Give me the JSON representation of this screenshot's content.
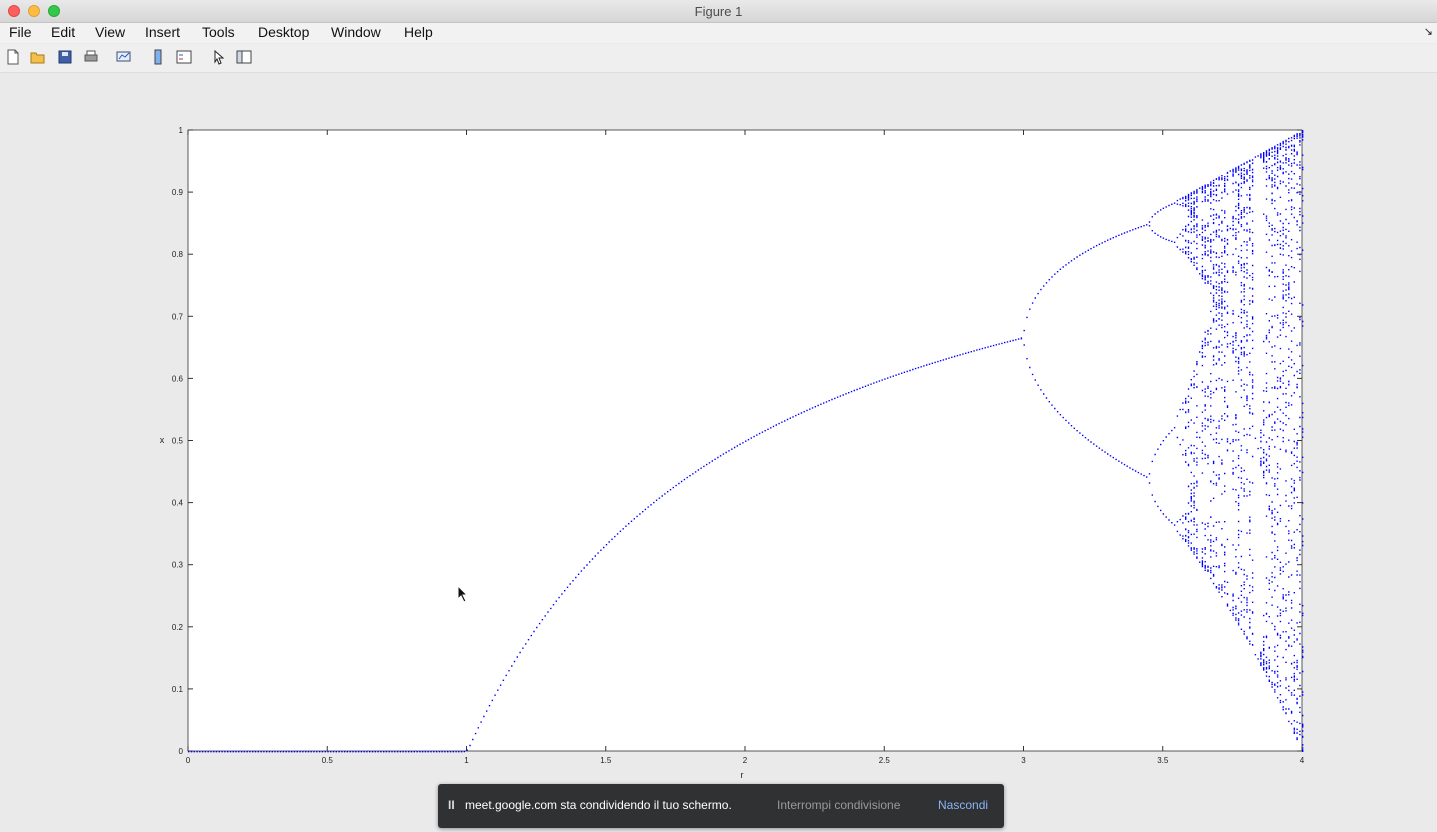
{
  "window": {
    "title": "Figure 1"
  },
  "menu": [
    "File",
    "Edit",
    "View",
    "Insert",
    "Tools",
    "Desktop",
    "Window",
    "Help"
  ],
  "toolbar": {
    "icons": [
      "new-figure-icon",
      "open-file-icon",
      "save-icon",
      "print-icon",
      "link-plot-icon",
      "insert-colorbar-icon",
      "insert-legend-icon",
      "edit-plot-icon",
      "show-plot-tools-icon"
    ]
  },
  "share_bar": {
    "pause": "II",
    "message": "meet.google.com sta condividendo il tuo schermo.",
    "stop_label": "Interrompi condivisione",
    "hide_label": "Nascondi"
  },
  "chart_data": {
    "type": "scatter",
    "title": "",
    "xlabel": "r",
    "ylabel": "x",
    "xlim": [
      0,
      4
    ],
    "ylim": [
      0,
      1
    ],
    "xticks": [
      "0",
      "0.5",
      "1",
      "1.5",
      "2",
      "2.5",
      "3",
      "3.5",
      "4"
    ],
    "yticks": [
      "0",
      "0.1",
      "0.2",
      "0.3",
      "0.4",
      "0.5",
      "0.6",
      "0.7",
      "0.8",
      "0.9",
      "1"
    ],
    "marker_color": "#0000ff",
    "series": [
      {
        "points": "logistic map bifurcation",
        "x": [
          0,
          0.5,
          1.0,
          1.2,
          1.5,
          2.0,
          2.5,
          2.8,
          3.0,
          3.2,
          3.45,
          3.56,
          3.7,
          3.83,
          4.0
        ],
        "y": [
          0,
          0,
          0,
          0.167,
          0.333,
          0.5,
          0.6,
          0.643,
          0.667,
          0.799,
          0.852,
          0.89,
          0.95,
          0.96,
          1.0
        ]
      }
    ]
  }
}
